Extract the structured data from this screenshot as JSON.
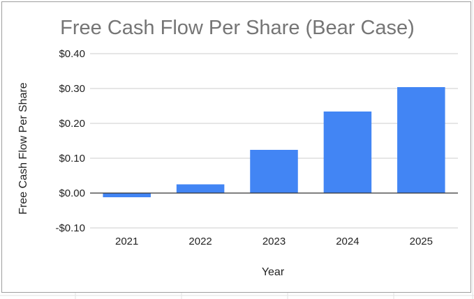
{
  "chart_data": {
    "type": "bar",
    "title": "Free Cash Flow Per Share (Bear Case)",
    "xlabel": "Year",
    "ylabel": "Free Cash Flow Per Share",
    "categories": [
      "2021",
      "2022",
      "2023",
      "2024",
      "2025"
    ],
    "values": [
      -0.012,
      0.025,
      0.124,
      0.234,
      0.304
    ],
    "ylim": [
      -0.1,
      0.4
    ],
    "yticks": [
      0.4,
      0.3,
      0.2,
      0.1,
      0.0,
      -0.1
    ],
    "ytick_labels": [
      "$0.40",
      "$0.30",
      "$0.20",
      "$0.10",
      "$0.00",
      "-$0.10"
    ],
    "grid": true,
    "legend": "none",
    "bar_color": "#4285f4",
    "grid_color": "#cccccc",
    "zero_line_color": "#333333"
  }
}
